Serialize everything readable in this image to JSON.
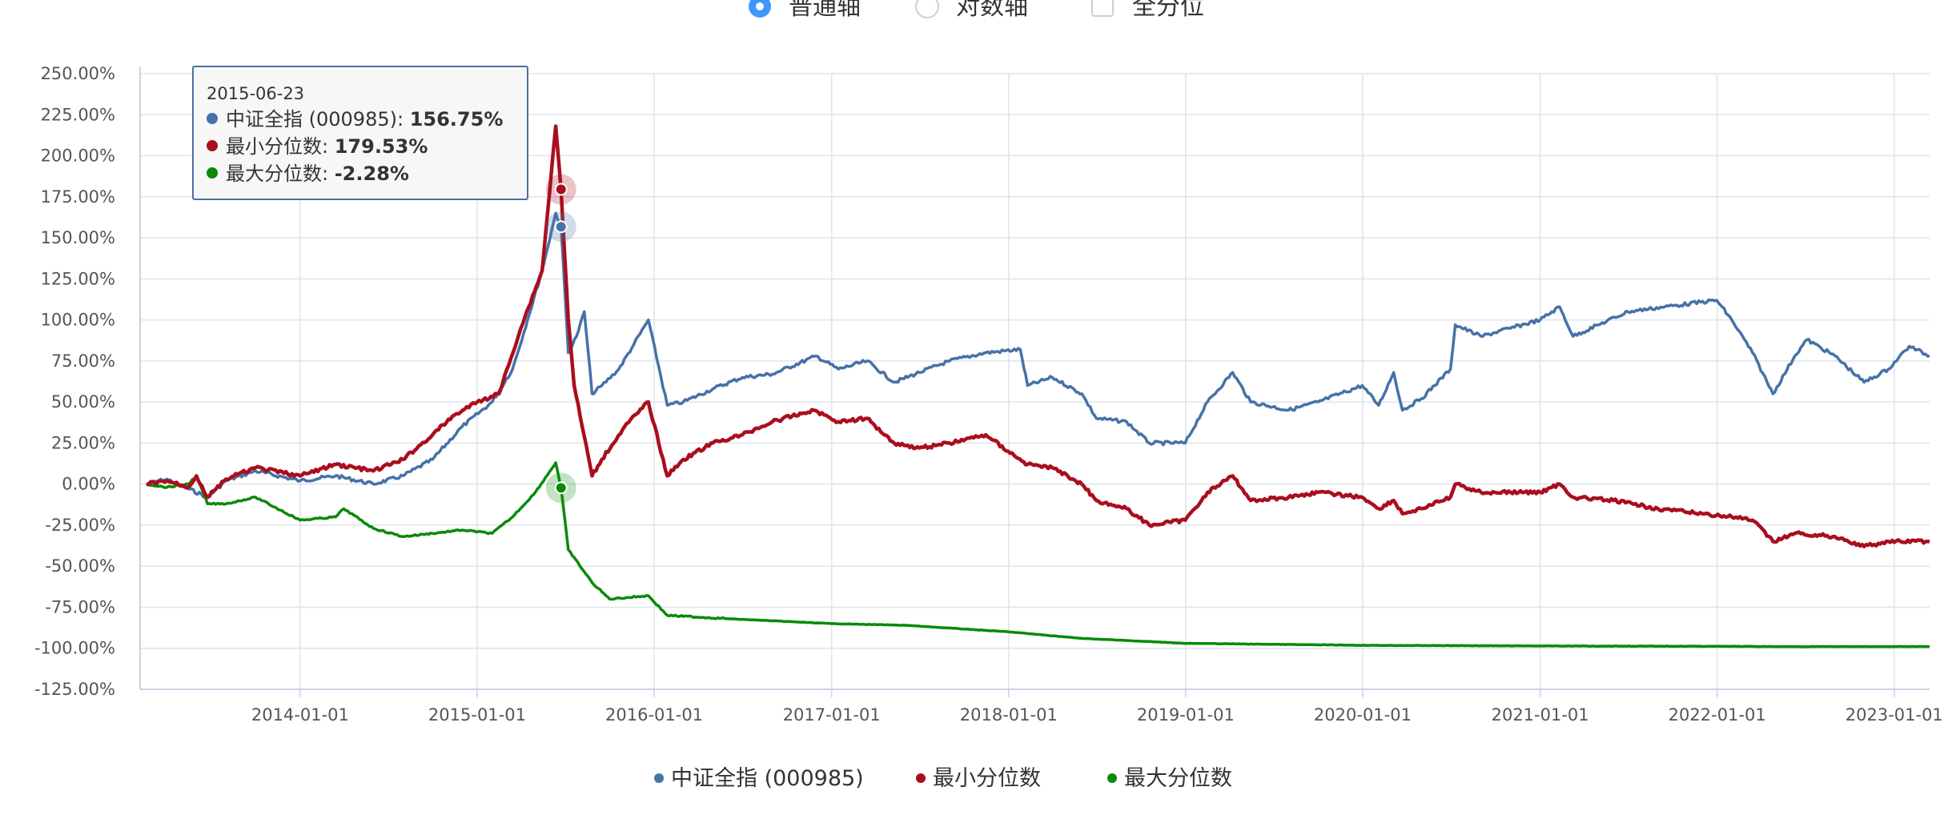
{
  "controls": {
    "options": [
      {
        "label": "普通轴",
        "selected": true,
        "kind": "radio"
      },
      {
        "label": "对数轴",
        "selected": false,
        "kind": "radio"
      },
      {
        "label": "全分位",
        "selected": false,
        "kind": "checkbox"
      }
    ]
  },
  "tooltip": {
    "date": "2015-06-23",
    "rows": [
      {
        "name": "中证全指 (000985)",
        "sep": ": ",
        "value": "156.75%"
      },
      {
        "name": "最小分位数",
        "sep": ": ",
        "value": "179.53%"
      },
      {
        "name": "最大分位数",
        "sep": ": ",
        "value": "-2.28%"
      }
    ]
  },
  "colors": {
    "series1": "#4572a7",
    "series2": "#aa0e1e",
    "series3": "#0a8a0a",
    "grid": "#dfe3ea",
    "axis": "#c9d3e6"
  },
  "chart_data": {
    "type": "line",
    "title": "",
    "xlabel": "",
    "ylabel": "",
    "ylim": [
      -125,
      250
    ],
    "y_ticks": [
      "250.00%",
      "225.00%",
      "200.00%",
      "175.00%",
      "150.00%",
      "125.00%",
      "100.00%",
      "75.00%",
      "50.00%",
      "25.00%",
      "0.00%",
      "-25.00%",
      "-50.00%",
      "-75.00%",
      "-100.00%",
      "-125.00%"
    ],
    "x_ticks": [
      "2014-01-01",
      "2015-01-01",
      "2016-01-01",
      "2017-01-01",
      "2018-01-01",
      "2019-01-01",
      "2020-01-01",
      "2021-01-01",
      "2022-01-01",
      "2023-01-01"
    ],
    "x_range": [
      "2013-02-05",
      "2023-03-15"
    ],
    "legend_position": "bottom-center",
    "grid": true,
    "series": [
      {
        "name": "中证全指 (000985)",
        "points": [
          [
            "2013-02-18",
            0
          ],
          [
            "2013-04-01",
            3
          ],
          [
            "2013-06-24",
            -8
          ],
          [
            "2013-08-01",
            2
          ],
          [
            "2013-10-01",
            8
          ],
          [
            "2014-01-01",
            2
          ],
          [
            "2014-03-15",
            5
          ],
          [
            "2014-06-01",
            0
          ],
          [
            "2014-08-01",
            5
          ],
          [
            "2014-10-01",
            15
          ],
          [
            "2014-12-01",
            35
          ],
          [
            "2015-02-01",
            50
          ],
          [
            "2015-03-15",
            70
          ],
          [
            "2015-04-15",
            100
          ],
          [
            "2015-05-15",
            130
          ],
          [
            "2015-06-12",
            165
          ],
          [
            "2015-06-23",
            156.75
          ],
          [
            "2015-07-08",
            80
          ],
          [
            "2015-07-25",
            90
          ],
          [
            "2015-08-10",
            105
          ],
          [
            "2015-08-26",
            55
          ],
          [
            "2015-09-15",
            60
          ],
          [
            "2015-10-20",
            70
          ],
          [
            "2015-11-20",
            85
          ],
          [
            "2015-12-20",
            100
          ],
          [
            "2016-01-28",
            48
          ],
          [
            "2016-03-01",
            50
          ],
          [
            "2016-05-01",
            58
          ],
          [
            "2016-07-01",
            65
          ],
          [
            "2016-09-01",
            67
          ],
          [
            "2016-11-30",
            78
          ],
          [
            "2017-01-15",
            70
          ],
          [
            "2017-03-15",
            75
          ],
          [
            "2017-05-10",
            62
          ],
          [
            "2017-07-01",
            68
          ],
          [
            "2017-09-01",
            75
          ],
          [
            "2017-11-15",
            80
          ],
          [
            "2018-01-25",
            82
          ],
          [
            "2018-02-09",
            60
          ],
          [
            "2018-04-01",
            65
          ],
          [
            "2018-06-01",
            55
          ],
          [
            "2018-07-01",
            40
          ],
          [
            "2018-09-01",
            38
          ],
          [
            "2018-10-18",
            25
          ],
          [
            "2018-12-31",
            25
          ],
          [
            "2019-02-15",
            50
          ],
          [
            "2019-04-08",
            68
          ],
          [
            "2019-05-15",
            50
          ],
          [
            "2019-08-01",
            45
          ],
          [
            "2019-10-01",
            50
          ],
          [
            "2019-12-31",
            60
          ],
          [
            "2020-02-03",
            48
          ],
          [
            "2020-03-05",
            68
          ],
          [
            "2020-03-23",
            45
          ],
          [
            "2020-05-01",
            52
          ],
          [
            "2020-06-30",
            70
          ],
          [
            "2020-07-10",
            97
          ],
          [
            "2020-09-01",
            90
          ],
          [
            "2020-11-01",
            95
          ],
          [
            "2021-01-01",
            100
          ],
          [
            "2021-02-10",
            108
          ],
          [
            "2021-03-10",
            90
          ],
          [
            "2021-05-01",
            97
          ],
          [
            "2021-07-01",
            105
          ],
          [
            "2021-09-15",
            108
          ],
          [
            "2021-12-31",
            112
          ],
          [
            "2022-01-31",
            100
          ],
          [
            "2022-03-15",
            80
          ],
          [
            "2022-04-26",
            55
          ],
          [
            "2022-06-10",
            78
          ],
          [
            "2022-07-05",
            88
          ],
          [
            "2022-09-01",
            78
          ],
          [
            "2022-10-31",
            62
          ],
          [
            "2022-12-20",
            70
          ],
          [
            "2023-02-01",
            84
          ],
          [
            "2023-03-15",
            78
          ]
        ]
      },
      {
        "name": "最小分位数",
        "points": [
          [
            "2013-02-18",
            0
          ],
          [
            "2013-04-01",
            2
          ],
          [
            "2013-05-15",
            -2
          ],
          [
            "2013-06-01",
            5
          ],
          [
            "2013-06-24",
            -8
          ],
          [
            "2013-08-01",
            3
          ],
          [
            "2013-10-01",
            10
          ],
          [
            "2014-01-01",
            5
          ],
          [
            "2014-03-15",
            12
          ],
          [
            "2014-06-01",
            8
          ],
          [
            "2014-08-01",
            15
          ],
          [
            "2014-10-01",
            30
          ],
          [
            "2014-11-15",
            42
          ],
          [
            "2015-01-01",
            50
          ],
          [
            "2015-02-15",
            55
          ],
          [
            "2015-04-01",
            95
          ],
          [
            "2015-05-15",
            130
          ],
          [
            "2015-06-12",
            218
          ],
          [
            "2015-06-23",
            179.53
          ],
          [
            "2015-07-08",
            100
          ],
          [
            "2015-07-20",
            60
          ],
          [
            "2015-08-26",
            5
          ],
          [
            "2015-09-15",
            15
          ],
          [
            "2015-11-01",
            35
          ],
          [
            "2015-12-20",
            50
          ],
          [
            "2016-01-28",
            5
          ],
          [
            "2016-03-01",
            15
          ],
          [
            "2016-05-01",
            25
          ],
          [
            "2016-07-01",
            30
          ],
          [
            "2016-09-01",
            38
          ],
          [
            "2016-11-25",
            45
          ],
          [
            "2017-01-15",
            38
          ],
          [
            "2017-03-15",
            40
          ],
          [
            "2017-05-10",
            25
          ],
          [
            "2017-07-01",
            22
          ],
          [
            "2017-09-01",
            25
          ],
          [
            "2017-11-15",
            30
          ],
          [
            "2017-12-31",
            20
          ],
          [
            "2018-02-09",
            12
          ],
          [
            "2018-04-01",
            10
          ],
          [
            "2018-06-01",
            0
          ],
          [
            "2018-07-01",
            -10
          ],
          [
            "2018-09-01",
            -15
          ],
          [
            "2018-10-18",
            -25
          ],
          [
            "2018-12-31",
            -22
          ],
          [
            "2019-02-15",
            -5
          ],
          [
            "2019-04-08",
            5
          ],
          [
            "2019-05-15",
            -10
          ],
          [
            "2019-08-01",
            -8
          ],
          [
            "2019-10-01",
            -5
          ],
          [
            "2019-12-31",
            -8
          ],
          [
            "2020-02-03",
            -15
          ],
          [
            "2020-03-05",
            -10
          ],
          [
            "2020-03-23",
            -18
          ],
          [
            "2020-05-01",
            -15
          ],
          [
            "2020-06-30",
            -8
          ],
          [
            "2020-07-10",
            0
          ],
          [
            "2020-09-01",
            -5
          ],
          [
            "2020-11-01",
            -5
          ],
          [
            "2021-01-01",
            -5
          ],
          [
            "2021-02-10",
            0
          ],
          [
            "2021-03-10",
            -8
          ],
          [
            "2021-06-01",
            -10
          ],
          [
            "2021-09-01",
            -15
          ],
          [
            "2021-12-01",
            -18
          ],
          [
            "2022-01-31",
            -20
          ],
          [
            "2022-03-15",
            -22
          ],
          [
            "2022-04-26",
            -35
          ],
          [
            "2022-06-10",
            -30
          ],
          [
            "2022-09-01",
            -32
          ],
          [
            "2022-10-31",
            -38
          ],
          [
            "2022-12-20",
            -35
          ],
          [
            "2023-03-15",
            -35
          ]
        ]
      },
      {
        "name": "最大分位数",
        "points": [
          [
            "2013-02-18",
            0
          ],
          [
            "2013-04-01",
            -2
          ],
          [
            "2013-05-15",
            0
          ],
          [
            "2013-06-01",
            5
          ],
          [
            "2013-06-24",
            -12
          ],
          [
            "2013-08-01",
            -12
          ],
          [
            "2013-10-01",
            -8
          ],
          [
            "2014-01-01",
            -22
          ],
          [
            "2014-03-15",
            -20
          ],
          [
            "2014-04-01",
            -15
          ],
          [
            "2014-06-01",
            -27
          ],
          [
            "2014-08-01",
            -32
          ],
          [
            "2014-10-01",
            -30
          ],
          [
            "2014-12-01",
            -28
          ],
          [
            "2015-02-01",
            -30
          ],
          [
            "2015-03-15",
            -20
          ],
          [
            "2015-05-01",
            -5
          ],
          [
            "2015-06-12",
            13
          ],
          [
            "2015-06-23",
            -2.28
          ],
          [
            "2015-07-08",
            -40
          ],
          [
            "2015-08-26",
            -60
          ],
          [
            "2015-10-01",
            -70
          ],
          [
            "2015-12-20",
            -68
          ],
          [
            "2016-01-28",
            -80
          ],
          [
            "2016-06-01",
            -82
          ],
          [
            "2017-01-01",
            -85
          ],
          [
            "2017-06-01",
            -86
          ],
          [
            "2018-01-01",
            -90
          ],
          [
            "2018-06-01",
            -94
          ],
          [
            "2019-01-01",
            -97
          ],
          [
            "2019-06-01",
            -97.5
          ],
          [
            "2020-01-01",
            -98.2
          ],
          [
            "2021-01-01",
            -98.6
          ],
          [
            "2022-01-01",
            -98.8
          ],
          [
            "2022-06-01",
            -99
          ],
          [
            "2023-03-15",
            -99
          ]
        ]
      }
    ]
  }
}
